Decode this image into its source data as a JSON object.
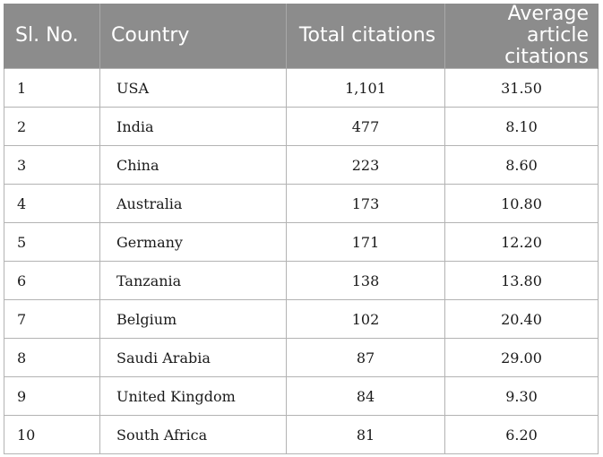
{
  "table": {
    "headers": {
      "sl_no": "Sl. No.",
      "country": "Country",
      "total_citations": "Total citations",
      "average_citations": "Average article citations"
    },
    "rows": [
      {
        "sl": "1",
        "country": "USA",
        "total": "1,101",
        "avg": "31.50"
      },
      {
        "sl": "2",
        "country": "India",
        "total": "477",
        "avg": "8.10"
      },
      {
        "sl": "3",
        "country": "China",
        "total": "223",
        "avg": "8.60"
      },
      {
        "sl": "4",
        "country": "Australia",
        "total": "173",
        "avg": "10.80"
      },
      {
        "sl": "5",
        "country": "Germany",
        "total": "171",
        "avg": "12.20"
      },
      {
        "sl": "6",
        "country": "Tanzania",
        "total": "138",
        "avg": "13.80"
      },
      {
        "sl": "7",
        "country": "Belgium",
        "total": "102",
        "avg": "20.40"
      },
      {
        "sl": "8",
        "country": "Saudi Arabia",
        "total": "87",
        "avg": "29.00"
      },
      {
        "sl": "9",
        "country": "United Kingdom",
        "total": "84",
        "avg": "9.30"
      },
      {
        "sl": "10",
        "country": "South Africa",
        "total": "81",
        "avg": "6.20"
      }
    ]
  },
  "colors": {
    "header_background": "#8c8c8c",
    "header_text": "#ffffff",
    "grid_line": "#b3b3b3"
  }
}
